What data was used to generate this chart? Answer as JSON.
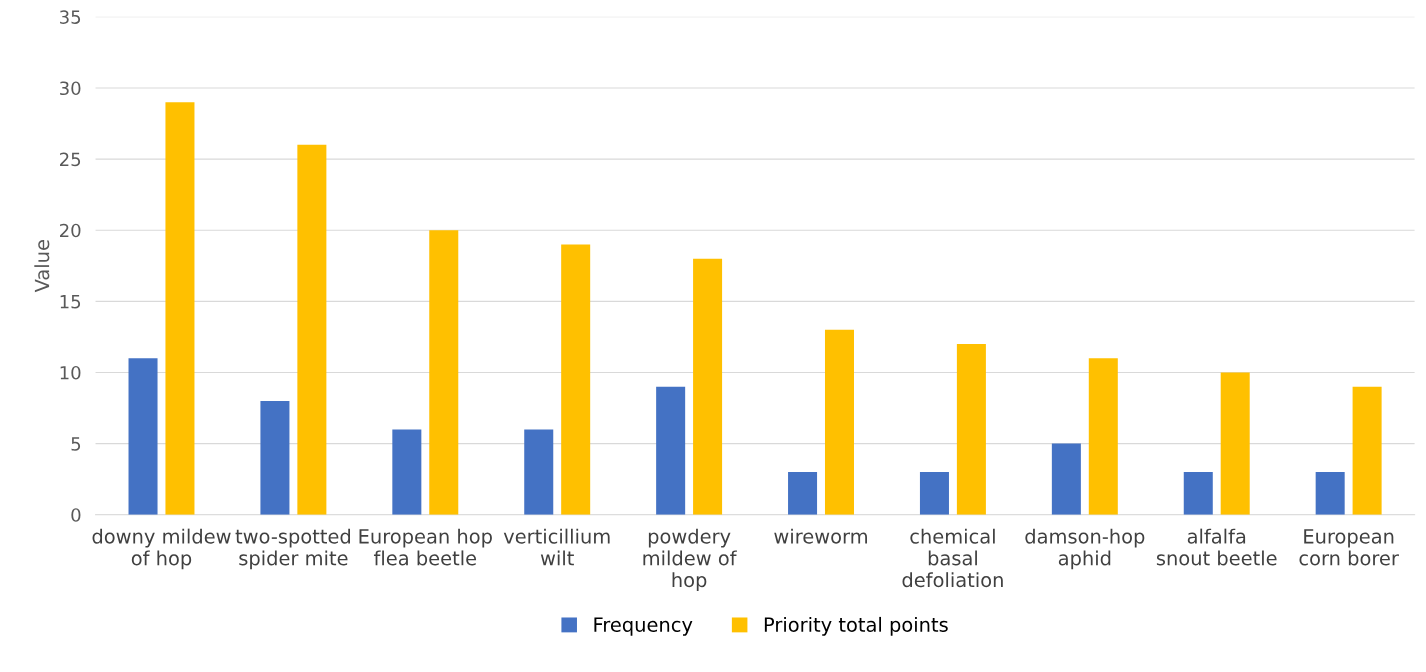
{
  "chart_data": {
    "type": "bar",
    "ylabel": "Value",
    "categories": [
      "downy mildew of hop",
      "two-spotted spider mite",
      "European hop flea beetle",
      "verticillium wilt",
      "powdery mildew of hop",
      "wireworm",
      "chemical basal defoliation",
      "damson-hop aphid",
      "alfalfa snout beetle",
      "European corn borer"
    ],
    "series": [
      {
        "name": "Frequency",
        "color": "#4472c4",
        "values": [
          11,
          8,
          6,
          6,
          9,
          3,
          3,
          5,
          3,
          3
        ]
      },
      {
        "name": "Priority total points",
        "color": "#ffc000",
        "values": [
          29,
          26,
          20,
          19,
          18,
          13,
          12,
          11,
          10,
          9
        ]
      }
    ],
    "ylim": [
      0,
      35
    ],
    "yticks": [
      0,
      5,
      10,
      15,
      20,
      25,
      30,
      35
    ],
    "grid": "y",
    "legend": "bottom"
  }
}
